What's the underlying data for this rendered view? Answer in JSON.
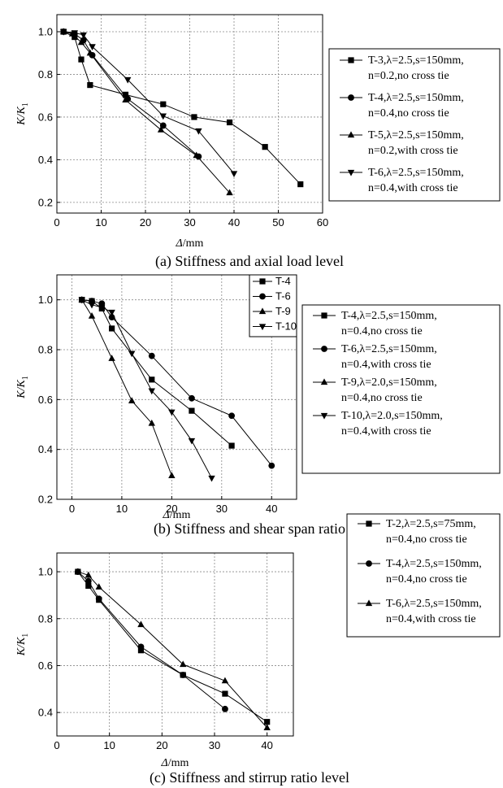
{
  "chart_data": [
    {
      "type": "line",
      "caption": "(a) Stiffness and axial load level",
      "xlabel": "Δ/mm",
      "ylabel": "K/K1",
      "xlim": [
        0,
        60
      ],
      "ylim": [
        0.15,
        1.08
      ],
      "xticks": [
        0,
        10,
        20,
        30,
        40,
        50,
        60
      ],
      "yticks": [
        0.2,
        0.4,
        0.6,
        0.8,
        1.0
      ],
      "grid": true,
      "legend_position": "right-outside",
      "series": [
        {
          "name": "T-3",
          "legend_line1": "T-3,λ=2.5,s=150mm,",
          "legend_line2": "n=0.2,no cross tie",
          "marker": "square",
          "x": [
            1.5,
            4,
            5.5,
            7.5,
            15.5,
            24,
            31,
            39,
            47,
            55
          ],
          "y": [
            1.0,
            0.975,
            0.87,
            0.75,
            0.705,
            0.66,
            0.6,
            0.575,
            0.46,
            0.285
          ]
        },
        {
          "name": "T-4",
          "legend_line1": "T-4,λ=2.5,s=150mm,",
          "legend_line2": "n=0.4,no cross tie",
          "marker": "circle",
          "x": [
            1.5,
            4,
            6,
            8,
            16,
            24,
            32
          ],
          "y": [
            1.0,
            0.99,
            0.96,
            0.89,
            0.685,
            0.56,
            0.415
          ]
        },
        {
          "name": "T-5",
          "legend_line1": "T-5,λ=2.5,s=150mm,",
          "legend_line2": "n=0.2,with cross tie",
          "marker": "triangle-up",
          "x": [
            1.5,
            3.5,
            5.5,
            7.5,
            15.5,
            23.5,
            31.5,
            39
          ],
          "y": [
            1.0,
            0.99,
            0.95,
            0.9,
            0.68,
            0.54,
            0.42,
            0.245
          ]
        },
        {
          "name": "T-6",
          "legend_line1": "T-6,λ=2.5,s=150mm,",
          "legend_line2": "n=0.4,with cross tie",
          "marker": "triangle-down",
          "x": [
            1.5,
            4,
            6,
            8,
            16,
            24,
            32,
            40
          ],
          "y": [
            1.0,
            0.995,
            0.985,
            0.93,
            0.775,
            0.605,
            0.535,
            0.335
          ]
        }
      ]
    },
    {
      "type": "line",
      "caption": "(b) Stiffness and shear span ratio",
      "xlabel": "Δ/mm",
      "ylabel": "K/K1",
      "xlim": [
        -3,
        45
      ],
      "ylim": [
        0.2,
        1.1
      ],
      "xticks": [
        0,
        10,
        20,
        30,
        40
      ],
      "yticks": [
        0.2,
        0.4,
        0.6,
        0.8,
        1.0
      ],
      "grid": true,
      "legend_position": "top-right-inside and right-outside",
      "series": [
        {
          "name": "T-4",
          "legend_line1": "T-4,λ=2.5,s=150mm,",
          "legend_line2": "n=0.4,no cross tie",
          "marker": "square",
          "x": [
            2,
            4,
            6,
            8,
            16,
            24,
            32
          ],
          "y": [
            1.0,
            0.995,
            0.965,
            0.885,
            0.68,
            0.555,
            0.415
          ]
        },
        {
          "name": "T-6",
          "legend_line1": "T-6,λ=2.5,s=150mm,",
          "legend_line2": "n=0.4,with cross tie",
          "marker": "circle",
          "x": [
            2,
            4,
            6,
            8,
            16,
            24,
            32,
            40
          ],
          "y": [
            1.0,
            0.995,
            0.985,
            0.93,
            0.775,
            0.605,
            0.535,
            0.335
          ]
        },
        {
          "name": "T-9",
          "legend_line1": "T-9,λ=2.0,s=150mm,",
          "legend_line2": "n=0.4,no cross tie",
          "marker": "triangle-up",
          "x": [
            2,
            4,
            8,
            12,
            16,
            20
          ],
          "y": [
            1.0,
            0.935,
            0.765,
            0.595,
            0.505,
            0.295
          ]
        },
        {
          "name": "T-10",
          "legend_line1": "T-10,λ=2.0,s=150mm,",
          "legend_line2": "n=0.4,with cross tie",
          "marker": "triangle-down",
          "x": [
            2,
            4,
            6,
            8,
            12,
            16,
            20,
            24,
            28
          ],
          "y": [
            1.0,
            0.98,
            0.97,
            0.95,
            0.785,
            0.635,
            0.55,
            0.435,
            0.285
          ]
        }
      ]
    },
    {
      "type": "line",
      "caption": "(c) Stiffness and stirrup ratio level",
      "xlabel": "Δ/mm",
      "ylabel": "K/K1",
      "xlim": [
        0,
        45
      ],
      "ylim": [
        0.3,
        1.08
      ],
      "xticks": [
        0,
        10,
        20,
        30,
        40
      ],
      "yticks": [
        0.4,
        0.6,
        0.8,
        1.0
      ],
      "grid": true,
      "legend_position": "right-outside",
      "series": [
        {
          "name": "T-2",
          "legend_line1": "T-2,λ=2.5,s=75mm,",
          "legend_line2": "n=0.4,no cross tie",
          "marker": "square",
          "x": [
            4,
            6,
            8,
            16,
            24,
            32,
            40
          ],
          "y": [
            1.0,
            0.94,
            0.88,
            0.665,
            0.56,
            0.48,
            0.36
          ]
        },
        {
          "name": "T-4",
          "legend_line1": "T-4,λ=2.5,s=150mm,",
          "legend_line2": "n=0.4,no cross tie",
          "marker": "circle",
          "x": [
            4,
            6,
            8,
            16,
            24,
            32
          ],
          "y": [
            1.0,
            0.96,
            0.885,
            0.68,
            0.56,
            0.415
          ]
        },
        {
          "name": "T-6",
          "legend_line1": "T-6,λ=2.5,s=150mm,",
          "legend_line2": "n=0.4,with cross tie",
          "marker": "triangle-up",
          "x": [
            4,
            6,
            8,
            16,
            24,
            32,
            40
          ],
          "y": [
            1.0,
            0.985,
            0.935,
            0.775,
            0.605,
            0.535,
            0.335
          ]
        }
      ]
    }
  ]
}
